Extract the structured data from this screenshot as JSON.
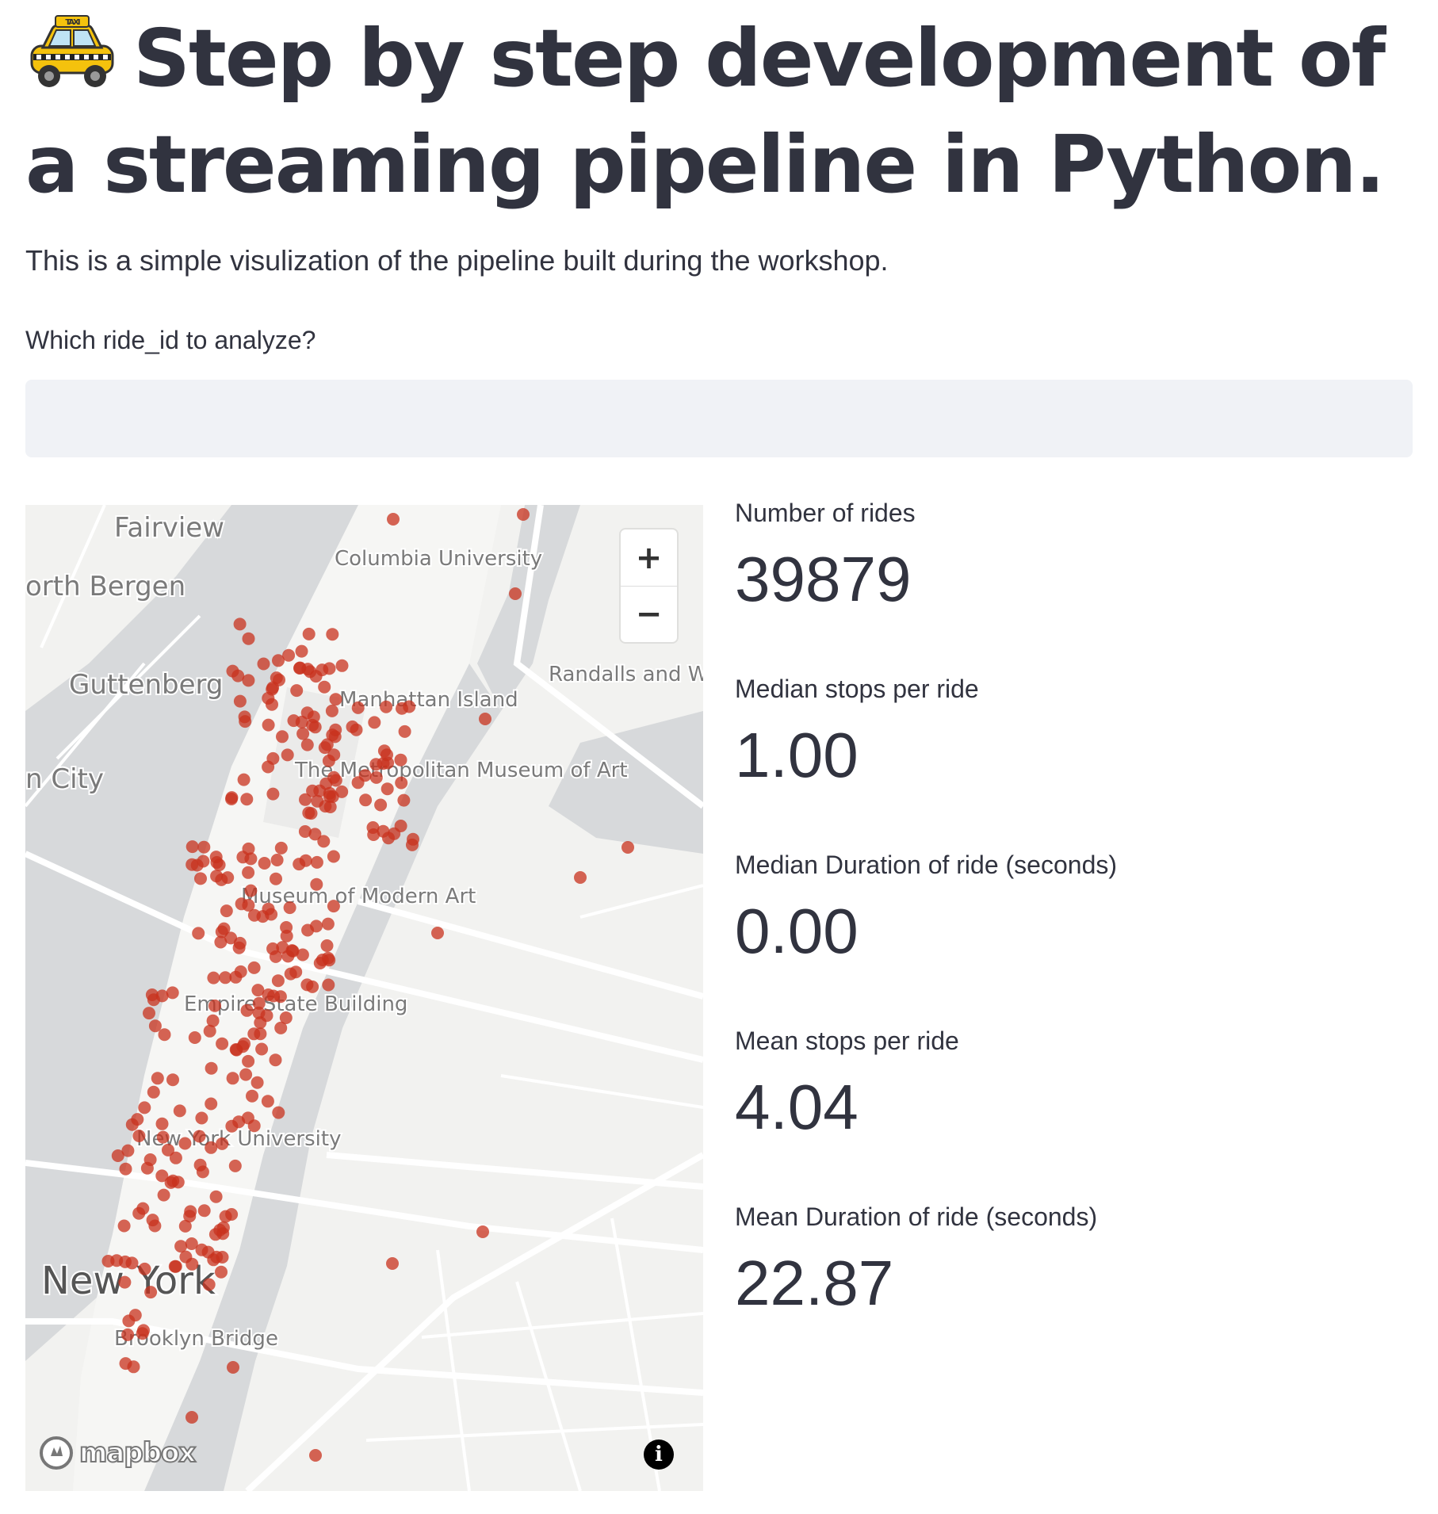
{
  "header": {
    "icon": "taxi-icon",
    "title": "Step by step development of a streaming pipeline in Python."
  },
  "intro": {
    "text": "This is a simple visulization of the pipeline built during the workshop."
  },
  "ride_input": {
    "label": "Which ride_id to analyze?",
    "value": "",
    "placeholder": ""
  },
  "map": {
    "provider": "mapbox",
    "place_labels": [
      "Fairview",
      "orth Bergen",
      "Guttenberg",
      "n City",
      "Columbia University",
      "Manhattan Island",
      "The Metropolitan Museum of Art",
      "Museum of Modern Art",
      "Empire State Building",
      "New York University",
      "New York",
      "Brooklyn Bridge",
      "Randalls and Wards Islands"
    ],
    "point_color": "#c8321e",
    "zoom_in_label": "+",
    "zoom_out_label": "−",
    "info_label": "i",
    "logo_text": "mapbox"
  },
  "metrics": [
    {
      "label": "Number of rides",
      "value": "39879"
    },
    {
      "label": "Median stops per ride",
      "value": "1.00"
    },
    {
      "label": "Median Duration of ride (seconds)",
      "value": "0.00"
    },
    {
      "label": "Mean stops per ride",
      "value": "4.04"
    },
    {
      "label": "Mean Duration of ride (seconds)",
      "value": "22.87"
    }
  ]
}
